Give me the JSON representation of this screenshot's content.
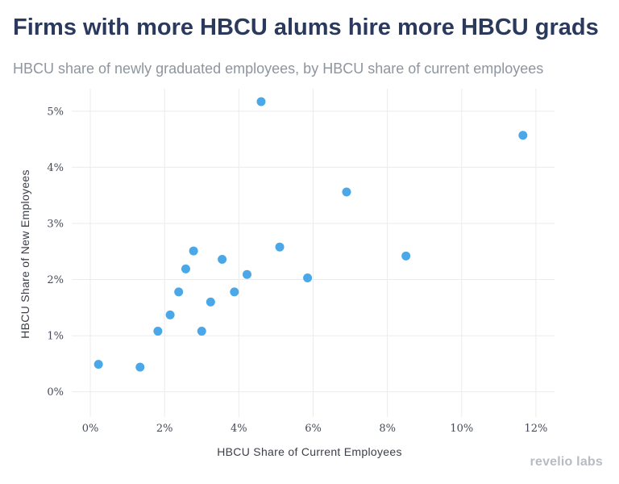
{
  "title": "Firms with more HBCU alums hire more HBCU grads",
  "subtitle": "HBCU share of newly graduated employees, by HBCU share of current employees",
  "logo_text": "revelio labs",
  "colors": {
    "point": "#4aa8e8",
    "grid": "#ebebeb"
  },
  "chart_data": {
    "type": "scatter",
    "xlabel": "HBCU Share of Current Employees",
    "ylabel": "HBCU Share of New Employees",
    "xlim": [
      -0.5,
      12.5
    ],
    "ylim": [
      -0.45,
      5.4
    ],
    "x_ticks": [
      0,
      2,
      4,
      6,
      8,
      10,
      12
    ],
    "x_tick_labels": [
      "0%",
      "2%",
      "4%",
      "6%",
      "8%",
      "10%",
      "12%"
    ],
    "y_ticks": [
      0,
      1,
      2,
      3,
      4,
      5
    ],
    "y_tick_labels": [
      "0%",
      "1%",
      "2%",
      "3%",
      "4%",
      "5%"
    ],
    "grid": true,
    "legend": "none",
    "points": [
      {
        "x": 0.22,
        "y": 0.49
      },
      {
        "x": 1.34,
        "y": 0.44
      },
      {
        "x": 1.82,
        "y": 1.08
      },
      {
        "x": 2.15,
        "y": 1.37
      },
      {
        "x": 2.38,
        "y": 1.78
      },
      {
        "x": 2.57,
        "y": 2.19
      },
      {
        "x": 2.78,
        "y": 2.51
      },
      {
        "x": 3.0,
        "y": 1.08
      },
      {
        "x": 3.24,
        "y": 1.6
      },
      {
        "x": 3.55,
        "y": 2.36
      },
      {
        "x": 3.88,
        "y": 1.78
      },
      {
        "x": 4.22,
        "y": 2.09
      },
      {
        "x": 4.6,
        "y": 5.17
      },
      {
        "x": 5.1,
        "y": 2.58
      },
      {
        "x": 5.85,
        "y": 2.03
      },
      {
        "x": 6.9,
        "y": 3.56
      },
      {
        "x": 8.5,
        "y": 2.42
      },
      {
        "x": 11.65,
        "y": 4.57
      }
    ]
  }
}
